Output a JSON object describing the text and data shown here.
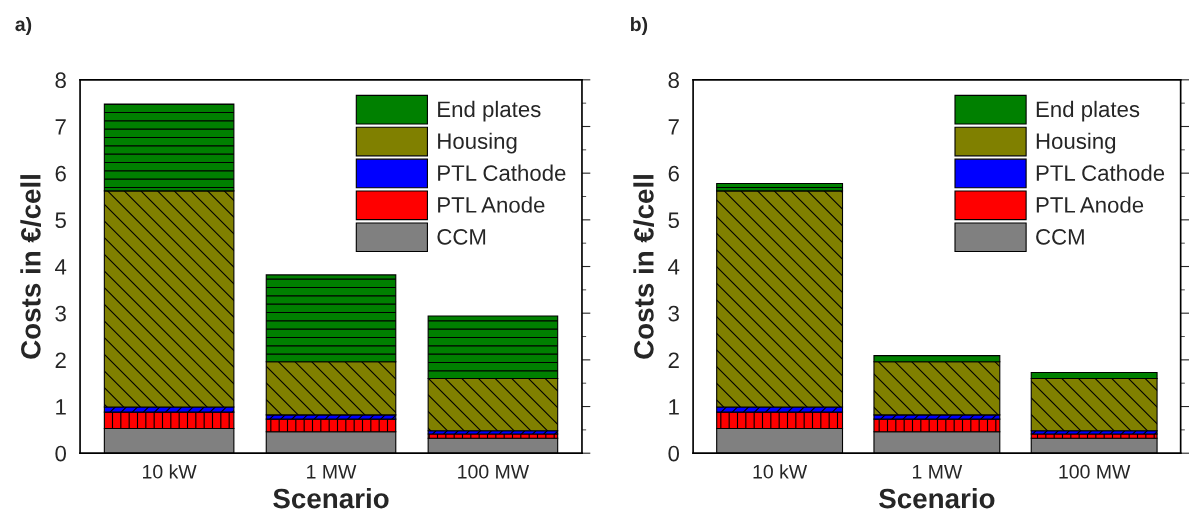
{
  "chart_data": [
    {
      "type": "bar",
      "title": "a)",
      "xlabel": "Scenario",
      "ylabel": "Costs in €/cell",
      "categories": [
        "10 kW",
        "1 MW",
        "100 MW"
      ],
      "stacked": true,
      "legend": "top right",
      "ylim": [
        0,
        8
      ],
      "yticks": [
        0,
        1,
        2,
        3,
        4,
        5,
        6,
        7,
        8
      ],
      "grid": false,
      "series": [
        {
          "name": "CCM",
          "color": "#808080",
          "values": [
            0.53,
            0.46,
            0.32
          ]
        },
        {
          "name": "PTL Anode",
          "color": "#ff0000",
          "values": [
            0.35,
            0.27,
            0.09
          ]
        },
        {
          "name": "PTL Cathode",
          "color": "#0000ff",
          "values": [
            0.11,
            0.09,
            0.07
          ]
        },
        {
          "name": "Housing",
          "color": "#808000",
          "values": [
            4.63,
            1.14,
            1.12
          ]
        },
        {
          "name": "End plates",
          "color": "#008000",
          "values": [
            1.86,
            1.86,
            1.34
          ]
        }
      ]
    },
    {
      "type": "bar",
      "title": "b)",
      "xlabel": "Scenario",
      "ylabel": "Costs in €/cell",
      "categories": [
        "10 kW",
        "1 MW",
        "100 MW"
      ],
      "stacked": true,
      "legend": "top right",
      "ylim": [
        0,
        8
      ],
      "yticks": [
        0,
        1,
        2,
        3,
        4,
        5,
        6,
        7,
        8
      ],
      "grid": false,
      "series": [
        {
          "name": "CCM",
          "color": "#808080",
          "values": [
            0.53,
            0.46,
            0.32
          ]
        },
        {
          "name": "PTL Anode",
          "color": "#ff0000",
          "values": [
            0.35,
            0.27,
            0.09
          ]
        },
        {
          "name": "PTL Cathode",
          "color": "#0000ff",
          "values": [
            0.11,
            0.09,
            0.07
          ]
        },
        {
          "name": "Housing",
          "color": "#808000",
          "values": [
            4.63,
            1.14,
            1.12
          ]
        },
        {
          "name": "End plates",
          "color": "#008000",
          "values": [
            0.16,
            0.13,
            0.13
          ]
        }
      ]
    }
  ]
}
